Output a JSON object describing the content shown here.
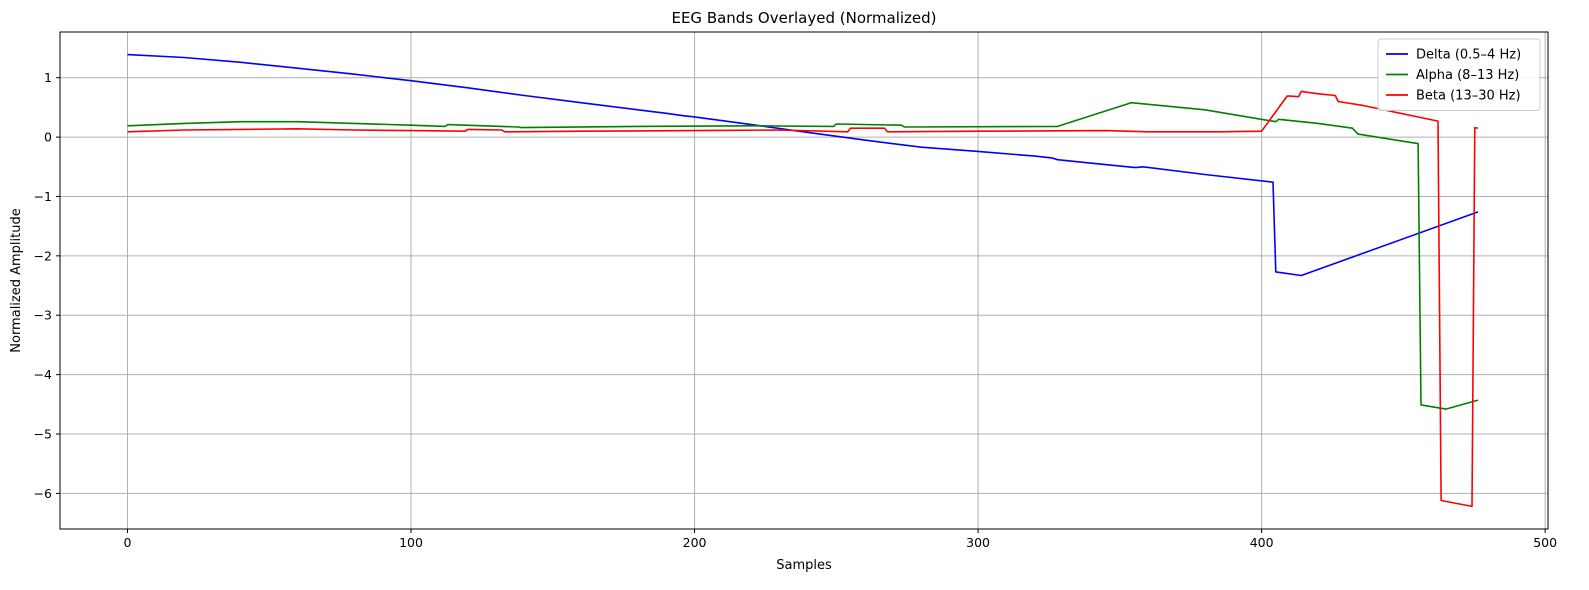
{
  "chart_data": {
    "type": "line",
    "title": "EEG Bands Overlayed (Normalized)",
    "xlabel": "Samples",
    "ylabel": "Normalized Amplitude",
    "xlim": [
      -23.8,
      501.0
    ],
    "ylim": [
      -6.6,
      1.77
    ],
    "xticks": [
      0,
      100,
      200,
      300,
      400,
      500
    ],
    "yticks": [
      1,
      0,
      -1,
      -2,
      -3,
      -4,
      -5,
      -6
    ],
    "xtick_labels": [
      "0",
      "100",
      "200",
      "300",
      "400",
      "500"
    ],
    "ytick_labels": [
      "1",
      "0",
      "−1",
      "−2",
      "−3",
      "−4",
      "−5",
      "−6"
    ],
    "grid": true,
    "legend_position": "top-right",
    "series": [
      {
        "name": "Delta (0.5–4 Hz)",
        "color": "#0000ff",
        "x": [
          0,
          20,
          40,
          60,
          80,
          100,
          120,
          140,
          160,
          180,
          190,
          196,
          198,
          200,
          220,
          240,
          260,
          280,
          300,
          320,
          326,
          328,
          340,
          355,
          356,
          358,
          380,
          404,
          405,
          414,
          476.3
        ],
        "y": [
          1.39,
          1.34,
          1.26,
          1.16,
          1.06,
          0.95,
          0.83,
          0.7,
          0.58,
          0.46,
          0.4,
          0.36,
          0.35,
          0.34,
          0.21,
          0.08,
          -0.05,
          -0.17,
          -0.24,
          -0.32,
          -0.35,
          -0.38,
          -0.44,
          -0.51,
          -0.51,
          -0.5,
          -0.63,
          -0.76,
          -2.27,
          -2.33,
          -1.26
        ]
      },
      {
        "name": "Alpha (8–13 Hz)",
        "color": "#008000",
        "x": [
          0,
          20,
          40,
          60,
          80,
          100,
          112,
          113,
          138,
          139,
          180,
          220,
          249,
          250,
          273,
          274,
          328,
          354,
          380,
          405,
          406,
          420,
          432,
          434,
          455.2,
          456.2,
          465,
          476.3
        ],
        "y": [
          0.19,
          0.23,
          0.26,
          0.26,
          0.23,
          0.2,
          0.18,
          0.21,
          0.17,
          0.16,
          0.18,
          0.19,
          0.18,
          0.22,
          0.2,
          0.17,
          0.18,
          0.58,
          0.46,
          0.26,
          0.3,
          0.23,
          0.15,
          0.05,
          -0.11,
          -4.51,
          -4.58,
          -4.43
        ]
      },
      {
        "name": "Beta (13–30 Hz)",
        "color": "#ff0000",
        "x": [
          0,
          20,
          40,
          60,
          80,
          100,
          119,
          120,
          132,
          133,
          160,
          200,
          230,
          254,
          255,
          267,
          268,
          300,
          345,
          360,
          385,
          400,
          409,
          410,
          413,
          414,
          420,
          426,
          427,
          436,
          462.2,
          463.3,
          474.2,
          475.2,
          476.3
        ],
        "y": [
          0.09,
          0.12,
          0.13,
          0.14,
          0.12,
          0.11,
          0.1,
          0.13,
          0.12,
          0.09,
          0.1,
          0.11,
          0.12,
          0.09,
          0.15,
          0.15,
          0.09,
          0.1,
          0.11,
          0.09,
          0.09,
          0.1,
          0.69,
          0.69,
          0.68,
          0.77,
          0.73,
          0.7,
          0.6,
          0.53,
          0.27,
          -6.12,
          -6.22,
          0.16,
          0.15
        ]
      }
    ]
  }
}
